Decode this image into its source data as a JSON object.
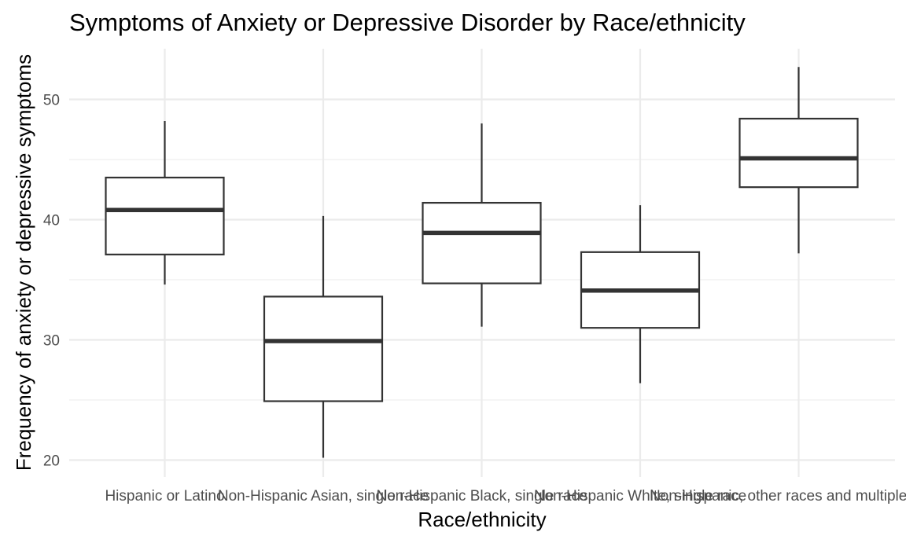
{
  "chart_data": {
    "type": "boxplot",
    "title": "Symptoms of Anxiety or Depressive Disorder by Race/ethnicity",
    "xlabel": "Race/ethnicity",
    "ylabel": "Frequency of anxiety or depressive symptoms",
    "ylim": [
      19.5,
      54
    ],
    "yticks": [
      20,
      30,
      40,
      50
    ],
    "grid": true,
    "categories": [
      "Hispanic or Latino",
      "Non-Hispanic Asian, single race",
      "Non-Hispanic Black, single race",
      "Non-Hispanic White, single race",
      "Non-Hispanic, other races and multiple races"
    ],
    "boxes": [
      {
        "min": 34.6,
        "q1": 37.1,
        "median": 40.8,
        "q3": 43.5,
        "max": 48.2
      },
      {
        "min": 20.2,
        "q1": 24.9,
        "median": 29.9,
        "q3": 33.6,
        "max": 40.3
      },
      {
        "min": 31.1,
        "q1": 34.7,
        "median": 38.9,
        "q3": 41.4,
        "max": 48.0
      },
      {
        "min": 26.4,
        "q1": 31.0,
        "median": 34.1,
        "q3": 37.3,
        "max": 41.2
      },
      {
        "min": 37.2,
        "q1": 42.7,
        "median": 45.1,
        "q3": 48.4,
        "max": 52.7
      }
    ]
  }
}
